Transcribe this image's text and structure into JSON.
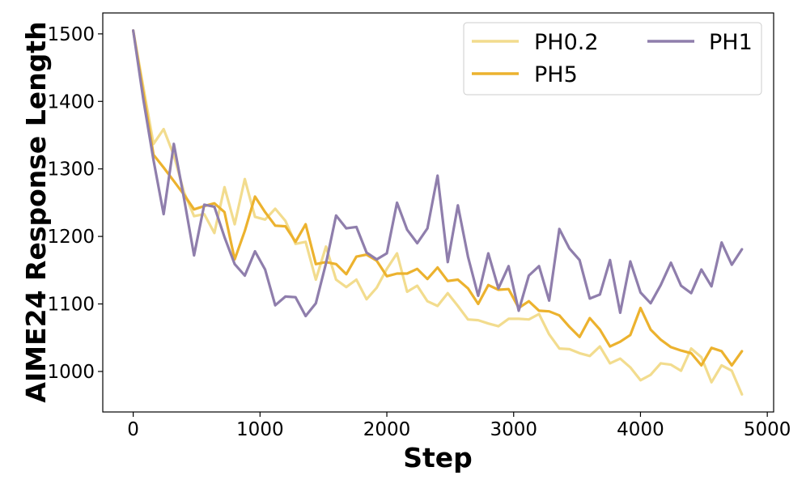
{
  "chart_data": {
    "type": "line",
    "title": "",
    "xlabel": "Step",
    "ylabel": "AIME24 Response Length",
    "xlim": [
      -240,
      5050
    ],
    "ylim": [
      940,
      1531
    ],
    "xticks": [
      0,
      1000,
      2000,
      3000,
      4000,
      5000
    ],
    "yticks": [
      1000,
      1100,
      1200,
      1300,
      1400,
      1500
    ],
    "grid": false,
    "legend": {
      "placement": "top-right",
      "columns": 2
    },
    "series": [
      {
        "name": "PH0.2",
        "color": "#f2dc8e",
        "x": [
          0,
          160,
          240,
          320,
          400,
          480,
          560,
          640,
          720,
          800,
          880,
          960,
          1040,
          1120,
          1200,
          1280,
          1360,
          1440,
          1520,
          1600,
          1680,
          1760,
          1840,
          1920,
          2000,
          2080,
          2160,
          2240,
          2320,
          2400,
          2480,
          2560,
          2640,
          2720,
          2800,
          2880,
          2960,
          3040,
          3120,
          3200,
          3280,
          3360,
          3440,
          3520,
          3600,
          3680,
          3760,
          3840,
          3920,
          4000,
          4080,
          4160,
          4240,
          4320,
          4400,
          4480,
          4560,
          4640,
          4720,
          4800
        ],
        "values": [
          1505,
          1337,
          1359,
          1320,
          1266,
          1230,
          1233,
          1205,
          1273,
          1218,
          1285,
          1229,
          1225,
          1241,
          1223,
          1189,
          1192,
          1136,
          1185,
          1136,
          1125,
          1136,
          1107,
          1124,
          1152,
          1175,
          1118,
          1127,
          1104,
          1097,
          1116,
          1097,
          1077,
          1076,
          1071,
          1067,
          1078,
          1078,
          1077,
          1085,
          1055,
          1034,
          1033,
          1027,
          1023,
          1037,
          1012,
          1019,
          1006,
          987,
          995,
          1012,
          1010,
          1001,
          1034,
          1021,
          984,
          1009,
          1001,
          966
        ]
      },
      {
        "name": "PH5",
        "color": "#ecb22e",
        "x": [
          0,
          160,
          240,
          320,
          400,
          480,
          560,
          640,
          720,
          800,
          880,
          960,
          1040,
          1120,
          1200,
          1280,
          1360,
          1440,
          1520,
          1600,
          1680,
          1760,
          1840,
          1920,
          2000,
          2080,
          2160,
          2240,
          2320,
          2400,
          2480,
          2560,
          2640,
          2720,
          2800,
          2880,
          2960,
          3040,
          3120,
          3200,
          3280,
          3360,
          3440,
          3520,
          3600,
          3680,
          3760,
          3840,
          3920,
          4000,
          4080,
          4160,
          4240,
          4320,
          4400,
          4480,
          4560,
          4640,
          4720,
          4800
        ],
        "values": [
          1505,
          1321,
          1302,
          1282,
          1262,
          1240,
          1245,
          1249,
          1236,
          1166,
          1208,
          1259,
          1236,
          1216,
          1215,
          1192,
          1218,
          1159,
          1162,
          1159,
          1144,
          1170,
          1173,
          1164,
          1141,
          1145,
          1145,
          1152,
          1137,
          1154,
          1134,
          1136,
          1123,
          1100,
          1128,
          1121,
          1122,
          1094,
          1104,
          1090,
          1089,
          1083,
          1066,
          1051,
          1079,
          1062,
          1037,
          1044,
          1054,
          1094,
          1062,
          1047,
          1036,
          1031,
          1027,
          1009,
          1035,
          1030,
          1009,
          1030
        ]
      },
      {
        "name": "PH1",
        "color": "#8f7eac",
        "x": [
          0,
          80,
          160,
          240,
          320,
          400,
          480,
          560,
          640,
          720,
          800,
          880,
          960,
          1040,
          1120,
          1200,
          1280,
          1360,
          1440,
          1520,
          1600,
          1680,
          1760,
          1840,
          1920,
          2000,
          2080,
          2160,
          2240,
          2320,
          2400,
          2480,
          2560,
          2640,
          2720,
          2800,
          2880,
          2960,
          3040,
          3120,
          3200,
          3280,
          3360,
          3440,
          3520,
          3600,
          3680,
          3760,
          3840,
          3920,
          4000,
          4080,
          4160,
          4240,
          4320,
          4400,
          4480,
          4560,
          4640,
          4720,
          4800
        ],
        "values": [
          1505,
          1403,
          1313,
          1233,
          1337,
          1257,
          1172,
          1247,
          1244,
          1199,
          1159,
          1142,
          1178,
          1151,
          1098,
          1111,
          1110,
          1082,
          1101,
          1160,
          1231,
          1212,
          1214,
          1176,
          1166,
          1175,
          1250,
          1210,
          1190,
          1212,
          1290,
          1162,
          1246,
          1170,
          1112,
          1175,
          1123,
          1156,
          1090,
          1142,
          1156,
          1105,
          1211,
          1182,
          1165,
          1108,
          1114,
          1165,
          1087,
          1163,
          1117,
          1101,
          1128,
          1161,
          1127,
          1116,
          1151,
          1126,
          1191,
          1158,
          1181
        ]
      }
    ]
  }
}
